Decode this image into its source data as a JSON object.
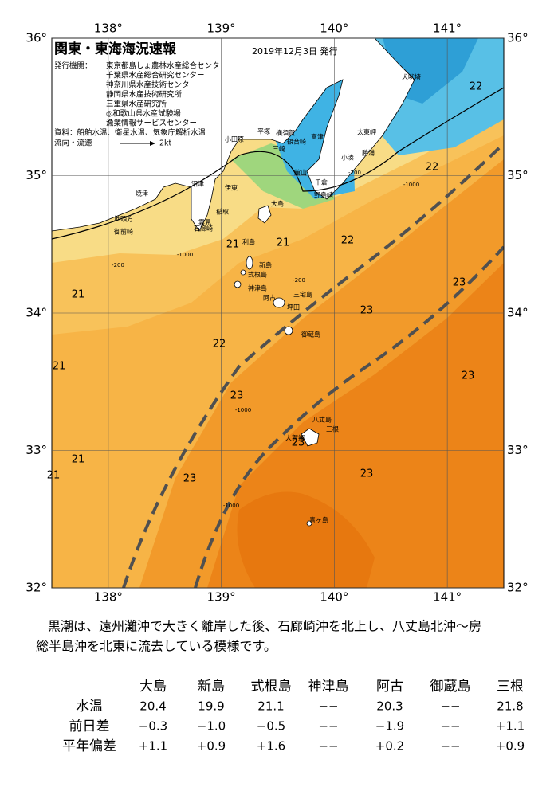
{
  "map": {
    "title": "関東・東海海況速報",
    "date": "2019年12月3日 発行",
    "publisher_label": "発行機関：",
    "publishers": [
      "東京都島しょ農林水産総合センター",
      "千葉県水産総合研究センター",
      "神奈川県水産技術センター",
      "静岡県水産技術研究所",
      "三重県水産研究所",
      "◎和歌山県水産試験場",
      "漁業情報サービスセンター"
    ],
    "sources": "資料：船舶水温、衛星水温、気象庁解析水温",
    "flow_legend": "流向・流速",
    "flow_scale": "2kt",
    "xlim": [
      137.5,
      141.5
    ],
    "ylim": [
      32,
      36
    ],
    "xticks": [
      {
        "value": 138,
        "label": "138°"
      },
      {
        "value": 139,
        "label": "139°"
      },
      {
        "value": 140,
        "label": "140°"
      },
      {
        "value": 141,
        "label": "141°"
      }
    ],
    "yticks": [
      {
        "value": 32,
        "label": "32°"
      },
      {
        "value": 33,
        "label": "33°"
      },
      {
        "value": 34,
        "label": "34°"
      },
      {
        "value": 35,
        "label": "35°"
      },
      {
        "value": 36,
        "label": "36°"
      }
    ],
    "place_names": [
      "犬吠埼",
      "太東岬",
      "勝浦",
      "小湊",
      "館山",
      "千倉",
      "野島崎",
      "平塚",
      "横須賀",
      "観音崎",
      "富津",
      "小田原",
      "三崎",
      "伊東",
      "稲取",
      "雲見",
      "石廊崎",
      "沼津",
      "焼津",
      "地頭方",
      "御前崎",
      "大島",
      "利島",
      "新島",
      "式根島",
      "神津島",
      "三宅島",
      "阿古",
      "坪田",
      "御蔵島",
      "八丈島",
      "三根",
      "大賀郷",
      "青ヶ島"
    ],
    "isotherm_labels": [
      22,
      22,
      21,
      21,
      22,
      23,
      21,
      23,
      22,
      21,
      23,
      23,
      23,
      21,
      21,
      23,
      23
    ],
    "depth_labels": [
      -200,
      -1000,
      -200,
      -1000,
      -1000,
      -1000,
      -200
    ]
  },
  "description": {
    "lines": [
      "黒潮は、遠州灘沖で大きく離岸した後、石廊崎沖を北上し、八丈島北沖～房",
      "総半島沖を北東に流去している模様です。"
    ]
  },
  "table": {
    "header": [
      "大島",
      "新島",
      "式根島",
      "神津島",
      "阿古",
      "御蔵島",
      "三根"
    ],
    "rows": [
      [
        "水温",
        "20.4",
        "19.9",
        "21.1",
        "−−",
        "20.3",
        "−−",
        "21.8"
      ],
      [
        "前日差",
        "−0.3",
        "−1.0",
        "−0.5",
        "−−",
        "−1.9",
        "−−",
        "+1.1"
      ],
      [
        "平年偏差",
        "+1.1",
        "+0.9",
        "+1.6",
        "−−",
        "+0.2",
        "−−",
        "+0.9"
      ]
    ]
  }
}
